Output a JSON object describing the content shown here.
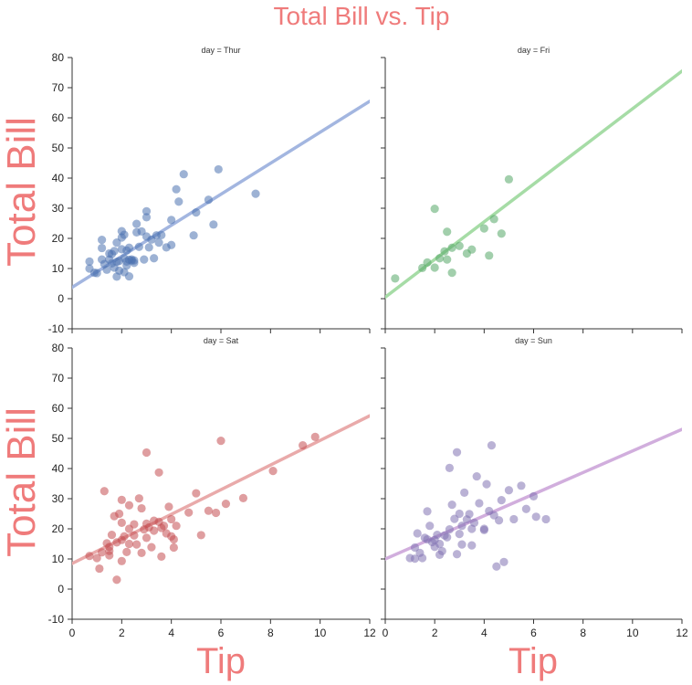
{
  "chart_data": {
    "type": "scatter",
    "title": "Total Bill vs. Tip",
    "xlabel": "Tip",
    "ylabel": "Total Bill",
    "xlim": [
      0,
      12
    ],
    "ylim": [
      -10,
      80
    ],
    "xticks": [
      0,
      2,
      4,
      6,
      8,
      10,
      12
    ],
    "yticks": [
      -10,
      0,
      10,
      20,
      30,
      40,
      50,
      60,
      70,
      80
    ],
    "grid": false,
    "colors": {
      "title": "#ef7b7b",
      "axis": "#333333"
    },
    "panels": [
      {
        "title": "day = Thur",
        "color": "#4c72b0",
        "line_color": "#a3b6e0",
        "fit": {
          "x": [
            -0.05,
            12
          ],
          "y": [
            3.5,
            65.5
          ]
        },
        "points": [
          [
            0.7,
            10.0
          ],
          [
            0.7,
            12.3
          ],
          [
            0.9,
            8.6
          ],
          [
            1.0,
            8.5
          ],
          [
            1.2,
            16.8
          ],
          [
            1.2,
            19.5
          ],
          [
            1.2,
            13.0
          ],
          [
            1.3,
            11.5
          ],
          [
            1.4,
            9.6
          ],
          [
            1.5,
            13.0
          ],
          [
            1.5,
            15.0
          ],
          [
            1.6,
            11.7
          ],
          [
            1.6,
            14.8
          ],
          [
            1.7,
            15.8
          ],
          [
            1.7,
            10.3
          ],
          [
            1.8,
            18.6
          ],
          [
            1.8,
            7.3
          ],
          [
            1.9,
            12.5
          ],
          [
            1.9,
            9.3
          ],
          [
            2.0,
            16.4
          ],
          [
            2.0,
            20.3
          ],
          [
            2.0,
            22.4
          ],
          [
            2.1,
            13.4
          ],
          [
            2.1,
            8.8
          ],
          [
            2.2,
            16.0
          ],
          [
            2.2,
            12.3
          ],
          [
            2.2,
            11.0
          ],
          [
            2.3,
            12.9
          ],
          [
            2.3,
            7.4
          ],
          [
            2.3,
            16.9
          ],
          [
            2.4,
            13.0
          ],
          [
            2.5,
            11.9
          ],
          [
            2.5,
            12.7
          ],
          [
            2.6,
            24.8
          ],
          [
            2.7,
            17.2
          ],
          [
            2.8,
            22.3
          ],
          [
            2.9,
            13.0
          ],
          [
            3.0,
            29.0
          ],
          [
            3.0,
            27.0
          ],
          [
            3.0,
            20.6
          ],
          [
            3.1,
            17.0
          ],
          [
            3.2,
            19.6
          ],
          [
            3.3,
            13.4
          ],
          [
            3.4,
            21.0
          ],
          [
            3.5,
            18.6
          ],
          [
            3.6,
            21.1
          ],
          [
            3.8,
            17.0
          ],
          [
            4.0,
            17.8
          ],
          [
            4.0,
            26.1
          ],
          [
            4.2,
            36.3
          ],
          [
            4.3,
            32.2
          ],
          [
            4.5,
            41.3
          ],
          [
            4.9,
            21.0
          ],
          [
            5.0,
            28.6
          ],
          [
            5.5,
            32.8
          ],
          [
            5.7,
            24.6
          ],
          [
            5.9,
            42.9
          ],
          [
            2.1,
            21.2
          ],
          [
            2.6,
            22.0
          ],
          [
            1.8,
            12.2
          ],
          [
            2.4,
            12.6
          ],
          [
            7.4,
            34.8
          ]
        ]
      },
      {
        "title": "day = Fri",
        "color": "#55a868",
        "line_color": "#a6dca6",
        "fit": {
          "x": [
            0,
            12
          ],
          "y": [
            0.5,
            75.5
          ]
        },
        "points": [
          [
            0.4,
            6.7
          ],
          [
            1.5,
            10.2
          ],
          [
            1.7,
            12.0
          ],
          [
            2.0,
            10.3
          ],
          [
            2.0,
            29.8
          ],
          [
            2.2,
            13.4
          ],
          [
            2.4,
            15.7
          ],
          [
            2.5,
            13.0
          ],
          [
            2.5,
            22.2
          ],
          [
            2.7,
            16.9
          ],
          [
            2.7,
            8.6
          ],
          [
            3.0,
            17.5
          ],
          [
            3.3,
            15.0
          ],
          [
            3.5,
            16.3
          ],
          [
            4.0,
            23.3
          ],
          [
            4.2,
            14.3
          ],
          [
            4.4,
            26.4
          ],
          [
            4.7,
            21.6
          ],
          [
            5.0,
            39.6
          ]
        ]
      },
      {
        "title": "day = Sat",
        "color": "#c44e52",
        "line_color": "#e9aaaa",
        "fit": {
          "x": [
            0,
            12
          ],
          "y": [
            8.5,
            57.5
          ]
        },
        "points": [
          [
            0.7,
            11.0
          ],
          [
            1.0,
            10.3
          ],
          [
            1.1,
            6.8
          ],
          [
            1.2,
            12.2
          ],
          [
            1.3,
            32.5
          ],
          [
            1.4,
            15.2
          ],
          [
            1.5,
            14.0
          ],
          [
            1.5,
            11.2
          ],
          [
            1.6,
            18.0
          ],
          [
            1.7,
            24.2
          ],
          [
            1.8,
            15.5
          ],
          [
            1.8,
            3.1
          ],
          [
            1.9,
            25.0
          ],
          [
            2.0,
            29.6
          ],
          [
            2.0,
            22.0
          ],
          [
            2.0,
            16.3
          ],
          [
            2.1,
            17.5
          ],
          [
            2.2,
            12.3
          ],
          [
            2.3,
            20.0
          ],
          [
            2.3,
            15.0
          ],
          [
            2.3,
            27.8
          ],
          [
            2.5,
            21.5
          ],
          [
            2.5,
            17.8
          ],
          [
            2.6,
            14.8
          ],
          [
            2.7,
            30.1
          ],
          [
            2.8,
            26.8
          ],
          [
            2.9,
            19.8
          ],
          [
            3.0,
            45.3
          ],
          [
            3.0,
            21.7
          ],
          [
            3.0,
            17.0
          ],
          [
            3.1,
            20.5
          ],
          [
            3.2,
            13.9
          ],
          [
            3.3,
            19.4
          ],
          [
            3.3,
            22.7
          ],
          [
            3.5,
            38.7
          ],
          [
            3.5,
            22.3
          ],
          [
            3.6,
            20.3
          ],
          [
            3.7,
            21.0
          ],
          [
            3.8,
            18.5
          ],
          [
            3.9,
            27.3
          ],
          [
            4.0,
            23.2
          ],
          [
            4.0,
            17.5
          ],
          [
            4.1,
            13.8
          ],
          [
            4.1,
            16.5
          ],
          [
            4.2,
            21.0
          ],
          [
            4.7,
            25.4
          ],
          [
            5.0,
            31.8
          ],
          [
            5.2,
            17.9
          ],
          [
            5.5,
            26.0
          ],
          [
            5.8,
            25.3
          ],
          [
            6.0,
            49.2
          ],
          [
            6.2,
            28.3
          ],
          [
            6.9,
            30.2
          ],
          [
            8.1,
            39.2
          ],
          [
            9.3,
            47.7
          ],
          [
            9.8,
            50.5
          ],
          [
            1.5,
            12.7
          ],
          [
            2.0,
            9.3
          ],
          [
            2.8,
            12.0
          ],
          [
            3.6,
            10.8
          ]
        ]
      },
      {
        "title": "day = Sun",
        "color": "#8172b2",
        "line_color": "#d1aedd",
        "fit": {
          "x": [
            0,
            12
          ],
          "y": [
            10.0,
            53.0
          ]
        },
        "points": [
          [
            1.0,
            10.3
          ],
          [
            1.2,
            13.8
          ],
          [
            1.3,
            18.5
          ],
          [
            1.4,
            12.0
          ],
          [
            1.5,
            10.3
          ],
          [
            1.6,
            17.0
          ],
          [
            1.7,
            16.5
          ],
          [
            1.7,
            25.8
          ],
          [
            1.8,
            21.0
          ],
          [
            1.9,
            15.6
          ],
          [
            2.0,
            16.3
          ],
          [
            2.0,
            14.0
          ],
          [
            2.1,
            18.0
          ],
          [
            2.2,
            11.4
          ],
          [
            2.3,
            12.6
          ],
          [
            2.5,
            17.2
          ],
          [
            2.6,
            19.8
          ],
          [
            2.6,
            40.2
          ],
          [
            2.7,
            28.0
          ],
          [
            2.8,
            23.3
          ],
          [
            2.9,
            45.4
          ],
          [
            3.0,
            25.0
          ],
          [
            3.0,
            18.3
          ],
          [
            3.1,
            14.8
          ],
          [
            3.2,
            32.0
          ],
          [
            3.3,
            23.1
          ],
          [
            3.4,
            24.9
          ],
          [
            3.5,
            20.0
          ],
          [
            3.5,
            14.5
          ],
          [
            3.6,
            22.0
          ],
          [
            3.7,
            37.4
          ],
          [
            3.8,
            28.5
          ],
          [
            4.0,
            19.6
          ],
          [
            4.1,
            34.8
          ],
          [
            4.2,
            25.9
          ],
          [
            4.3,
            47.7
          ],
          [
            4.4,
            24.5
          ],
          [
            4.5,
            7.5
          ],
          [
            4.6,
            22.8
          ],
          [
            4.7,
            29.5
          ],
          [
            4.8,
            9.0
          ],
          [
            5.0,
            32.8
          ],
          [
            5.2,
            23.2
          ],
          [
            5.5,
            34.3
          ],
          [
            5.7,
            26.6
          ],
          [
            6.0,
            30.8
          ],
          [
            6.1,
            24.0
          ],
          [
            6.5,
            23.2
          ],
          [
            1.2,
            10.1
          ],
          [
            2.2,
            15.0
          ],
          [
            3.1,
            21.0
          ],
          [
            2.9,
            11.6
          ],
          [
            2.4,
            17.8
          ],
          [
            4.0,
            20.0
          ]
        ]
      }
    ]
  }
}
